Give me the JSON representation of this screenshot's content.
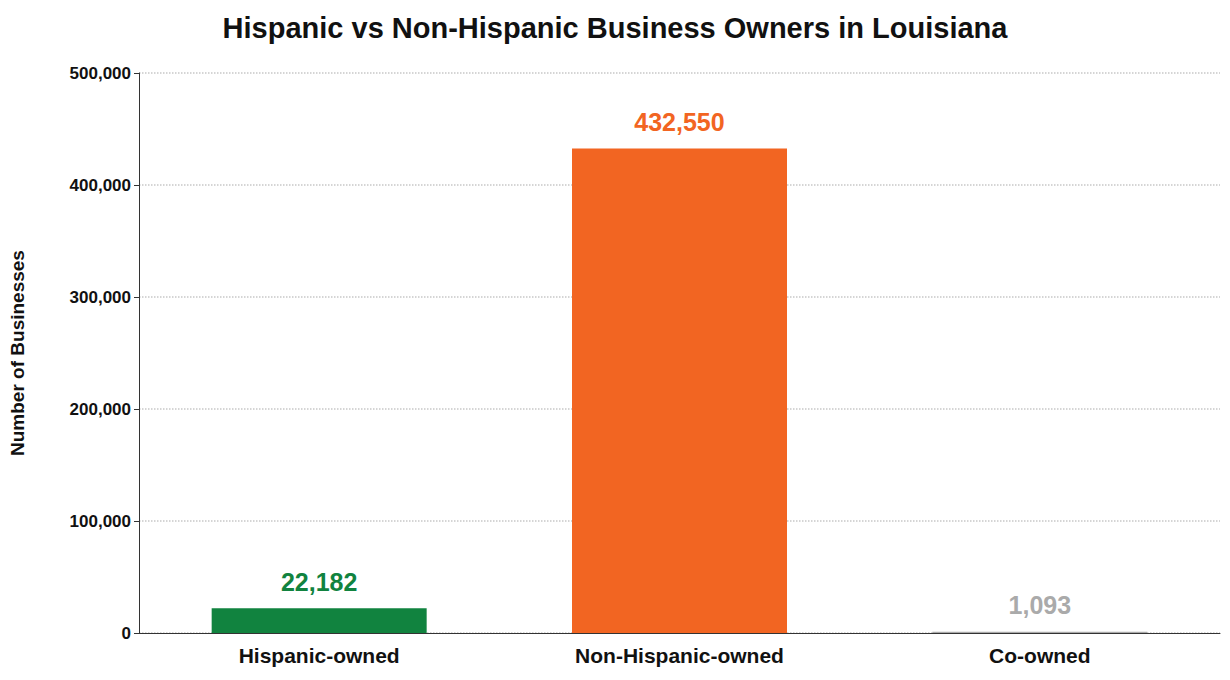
{
  "chart_data": {
    "type": "bar",
    "title": "Hispanic vs Non-Hispanic Business Owners in Louisiana",
    "ylabel": "Number of Businesses",
    "categories": [
      "Hispanic-owned",
      "Non-Hispanic-owned",
      "Co-owned"
    ],
    "values": [
      22182,
      432550,
      1093
    ],
    "value_labels": [
      "22,182",
      "432,550",
      "1,093"
    ],
    "colors": [
      "#11833f",
      "#f26522",
      "#aaaaaa"
    ],
    "ylim": [
      0,
      500000
    ],
    "yticks": [
      0,
      {
        "value": 100000,
        "label": "100,000"
      },
      {
        "value": 200000,
        "label": "200,000"
      },
      {
        "value": 300000,
        "label": "300,000"
      },
      {
        "value": 400000,
        "label": "400,000"
      },
      {
        "value": 500000,
        "label": "500,000"
      }
    ],
    "grid": true,
    "data_labels": true
  }
}
